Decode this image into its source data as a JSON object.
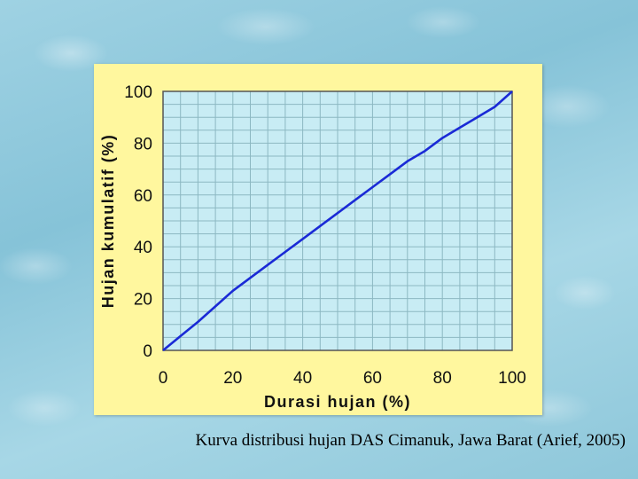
{
  "caption": "Kurva distribusi hujan DAS Cimanuk, Jawa Barat (Arief, 2005)",
  "colors": {
    "panel_background": "#fff79e",
    "plot_background": "#c8ecf4",
    "grid": "#8cb8c2",
    "line": "#1a2ad6"
  },
  "chart_data": {
    "type": "line",
    "xlabel": "Durasi hujan (%)",
    "ylabel": "Hujan kumulatif (%)",
    "xlim": [
      0,
      100
    ],
    "ylim": [
      0,
      100
    ],
    "x_ticks": [
      "0",
      "20",
      "40",
      "60",
      "80",
      "100"
    ],
    "y_ticks": [
      "0",
      "20",
      "40",
      "60",
      "80",
      "100"
    ],
    "grid": true,
    "x": [
      0,
      5,
      10,
      15,
      20,
      25,
      30,
      35,
      40,
      45,
      50,
      55,
      60,
      65,
      70,
      75,
      80,
      85,
      90,
      95,
      100
    ],
    "series": [
      {
        "values": [
          0,
          5.5,
          11,
          17,
          23,
          28,
          33,
          38,
          43,
          48,
          53,
          58,
          63,
          68,
          73,
          77,
          82,
          86,
          90,
          94,
          100
        ]
      }
    ]
  }
}
